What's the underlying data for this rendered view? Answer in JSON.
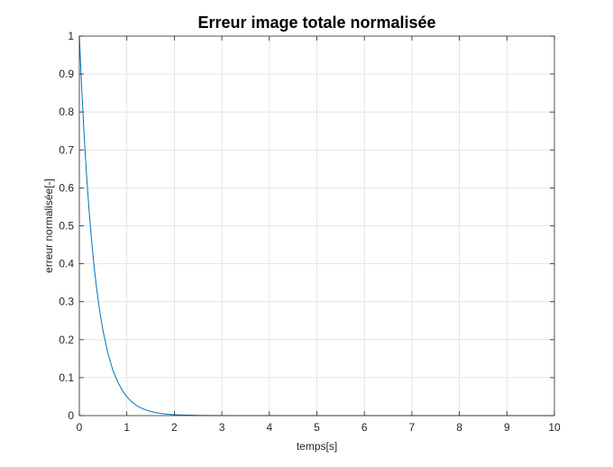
{
  "chart_data": {
    "type": "line",
    "title": "Erreur image totale normalisée",
    "xlabel": "temps[s]",
    "ylabel": "erreur normalisée[-]",
    "xlim": [
      0,
      10
    ],
    "ylim": [
      0,
      1
    ],
    "xticks": [
      0,
      1,
      2,
      3,
      4,
      5,
      6,
      7,
      8,
      9,
      10
    ],
    "yticks": [
      0,
      0.1,
      0.2,
      0.3,
      0.4,
      0.5,
      0.6,
      0.7,
      0.8,
      0.9,
      1
    ],
    "xtick_labels": [
      "0",
      "1",
      "2",
      "3",
      "4",
      "5",
      "6",
      "7",
      "8",
      "9",
      "10"
    ],
    "ytick_labels": [
      "0",
      "0.1",
      "0.2",
      "0.3",
      "0.4",
      "0.5",
      "0.6",
      "0.7",
      "0.8",
      "0.9",
      "1"
    ],
    "grid": true,
    "series": [
      {
        "color": "#0072BD",
        "x": [
          0,
          0.05,
          0.1,
          0.15,
          0.2,
          0.25,
          0.3,
          0.35,
          0.4,
          0.45,
          0.5,
          0.6,
          0.7,
          0.8,
          0.9,
          1.0,
          1.1,
          1.2,
          1.3,
          1.4,
          1.5,
          1.6,
          1.7,
          1.8,
          1.9,
          2.0,
          2.2,
          2.4,
          2.6,
          2.8,
          3.0,
          3.5,
          4.0,
          5.0,
          6.0,
          7.0,
          8.0,
          9.0,
          10.0
        ],
        "y": [
          1.0,
          0.861,
          0.741,
          0.638,
          0.549,
          0.472,
          0.407,
          0.35,
          0.301,
          0.259,
          0.223,
          0.165,
          0.122,
          0.091,
          0.067,
          0.05,
          0.037,
          0.027,
          0.02,
          0.015,
          0.011,
          0.008,
          0.006,
          0.0045,
          0.0033,
          0.0025,
          0.0014,
          0.0008,
          0.0004,
          0.0002,
          0.0001,
          3e-05,
          1e-05,
          0,
          0,
          0,
          0,
          0,
          0
        ]
      }
    ]
  }
}
